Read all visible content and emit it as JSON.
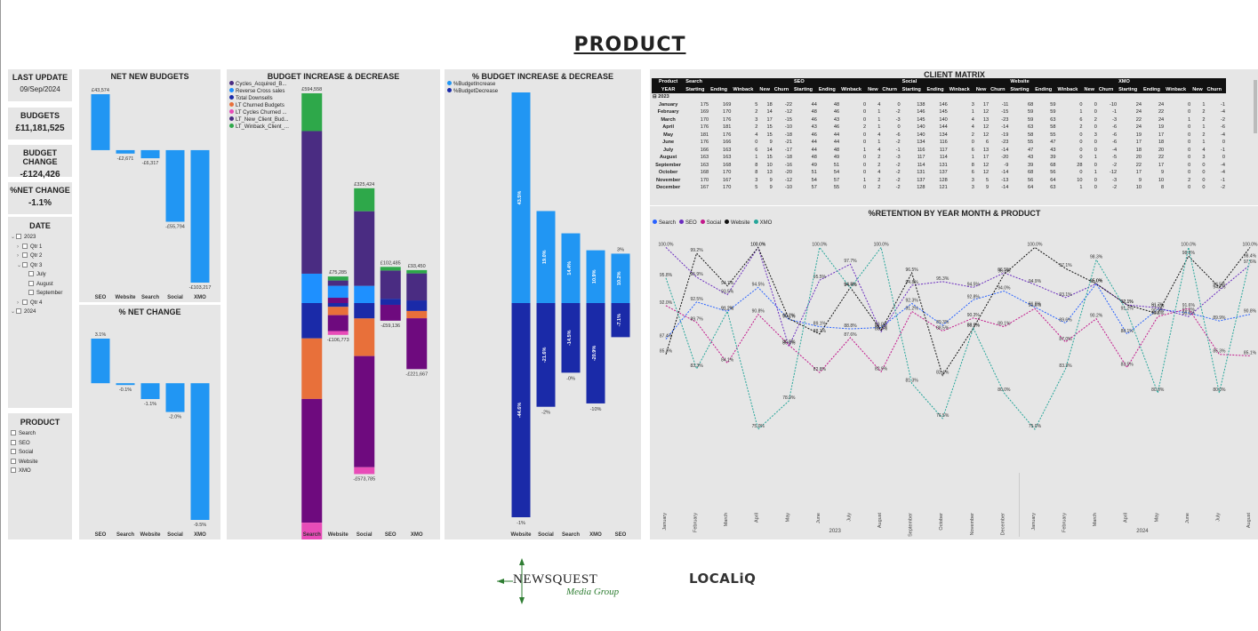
{
  "page": {
    "title": "PRODUCT"
  },
  "kpis": [
    {
      "label": "LAST UPDATE",
      "value": "09/Sep/2024"
    },
    {
      "label": "BUDGETS",
      "value": "£11,181,525"
    },
    {
      "label": "BUDGET CHANGE",
      "value": "-£124,426"
    },
    {
      "label": "%NET CHANGE",
      "value": "-1.1%"
    }
  ],
  "date_slicer": {
    "title": "DATE",
    "items": [
      {
        "label": "2023",
        "level": 0,
        "expander": "⌄"
      },
      {
        "label": "Qtr 1",
        "level": 1,
        "expander": "›"
      },
      {
        "label": "Qtr 2",
        "level": 1,
        "expander": "›"
      },
      {
        "label": "Qtr 3",
        "level": 1,
        "expander": "⌄"
      },
      {
        "label": "July",
        "level": 2,
        "expander": ""
      },
      {
        "label": "August",
        "level": 2,
        "expander": ""
      },
      {
        "label": "September",
        "level": 2,
        "expander": ""
      },
      {
        "label": "Qtr 4",
        "level": 1,
        "expander": "›"
      },
      {
        "label": "2024",
        "level": 0,
        "expander": "⌄"
      }
    ]
  },
  "product_slicer": {
    "title": "PRODUCT",
    "items": [
      "Search",
      "SEO",
      "Social",
      "Website",
      "XMO"
    ]
  },
  "colors": {
    "blue": "#1e90ff",
    "navy": "#1a2aa8",
    "orange": "#e8703a",
    "purple": "#4a2c82",
    "magenta": "#6e0a7e",
    "pink": "#e84cb8",
    "green": "#2ea84a",
    "light_blue": "#2196f3"
  },
  "chart_data": [
    {
      "id": "net_new_budgets",
      "type": "bar",
      "title": "NET NEW BUDGETS",
      "categories": [
        "SEO",
        "Website",
        "Search",
        "Social",
        "XMO"
      ],
      "values": [
        43574,
        -2671,
        -6317,
        -55794,
        -103217
      ],
      "labels": [
        "£43,574",
        "-£2,671",
        "-£6,317",
        "-£55,794",
        "-£103,217"
      ]
    },
    {
      "id": "pct_net_change",
      "type": "bar",
      "title": "% NET CHANGE",
      "categories": [
        "SEO",
        "Search",
        "Website",
        "Social",
        "XMO"
      ],
      "values": [
        3.1,
        -0.1,
        -1.1,
        -2.0,
        -9.5
      ],
      "labels": [
        "3.1%",
        "-0.1%",
        "-1.1%",
        "-2.0%",
        "-9.5%"
      ]
    },
    {
      "id": "budget_inc_dec",
      "type": "bar",
      "title": "BUDGET INCREASE & DECREASE",
      "categories": [
        "Search",
        "Website",
        "Social",
        "SEO",
        "XMO"
      ],
      "legend": [
        "Cycles_Acquired_B...",
        "Reverse Cross sales",
        "Total Downsells",
        "LT Churned Budgets",
        "LT Cycles Churned ...",
        "LT_New_Client_Bud...",
        "LT_Winback_Client_..."
      ],
      "top_labels": [
        "£594,558",
        "£75,285",
        "£325,424",
        "£102,485",
        "£93,450"
      ],
      "bottom_labels": [
        "-£846,863",
        "-£106,773",
        "-£573,785",
        "-£59,136",
        "-£221,667"
      ]
    },
    {
      "id": "pct_budget_inc_dec",
      "type": "bar",
      "title": "% BUDGET INCREASE & DECREASE",
      "categories": [
        "Website",
        "Social",
        "Search",
        "XMO",
        "SEO"
      ],
      "legend": [
        "%BudgetIncrease",
        "%BudgetDecrease"
      ],
      "increase": [
        43.5,
        19.0,
        14.4,
        10.9,
        10.2
      ],
      "increase_labels": [
        "43.5%",
        "19.0%",
        "14.4%",
        "10.9%",
        "10.2%"
      ],
      "decrease": [
        -44.6,
        -21.6,
        -14.5,
        -20.9,
        -7.1
      ],
      "decrease_labels": [
        "-44.6%",
        "-21.6%",
        "-14.5%",
        "-20.9%",
        "-7.1%"
      ],
      "top_small": [
        "",
        "",
        "",
        "",
        "3%"
      ],
      "bottom_small": [
        "-1%",
        "-2%",
        "-0%",
        "-10%",
        ""
      ]
    },
    {
      "id": "retention",
      "type": "line",
      "title": "%RETENTION BY YEAR MONTH & PRODUCT",
      "x": [
        "January",
        "February",
        "March",
        "April",
        "May",
        "June",
        "July",
        "August",
        "September",
        "October",
        "November",
        "December",
        "January",
        "February",
        "March",
        "April",
        "May",
        "June",
        "July",
        "August"
      ],
      "years": [
        {
          "label": "2023",
          "from": 0,
          "to": 11
        },
        {
          "label": "2024",
          "from": 12,
          "to": 19
        }
      ],
      "ylim": [
        70,
        102
      ],
      "series": [
        {
          "name": "Search",
          "color": "#2962ff",
          "values": [
            87.4,
            92.5,
            91.2,
            94.5,
            90.1,
            89.1,
            88.8,
            89.0,
            92.3,
            89.3,
            92.8,
            94.0,
            91.8,
            89.6,
            95.0,
            88.1,
            91.5,
            91.0,
            89.9,
            90.8
          ]
        },
        {
          "name": "SEO",
          "color": "#6a2cbf",
          "values": [
            100.0,
            95.9,
            93.5,
            100.0,
            86.4,
            95.5,
            97.7,
            88.4,
            94.8,
            95.3,
            94.5,
            96.5,
            94.9,
            93.1,
            95.0,
            92.1,
            91.7,
            90.5,
            94.1,
            97.6
          ]
        },
        {
          "name": "Social",
          "color": "#c2188b",
          "values": [
            92.0,
            89.7,
            84.1,
            90.8,
            86.6,
            82.8,
            87.6,
            82.9,
            91.2,
            88.5,
            90.3,
            89.1,
            91.6,
            87.0,
            90.2,
            83.5,
            90.5,
            91.6,
            85.3,
            85.1
          ]
        },
        {
          "name": "Website",
          "color": "#111111",
          "values": [
            85.3,
            99.2,
            94.7,
            100.0,
            90.2,
            88.1,
            94.5,
            88.6,
            96.5,
            82.4,
            88.9,
            96.3,
            100.0,
            97.1,
            95.0,
            92.1,
            90.9,
            98.8,
            94.5,
            100.0
          ]
        },
        {
          "name": "XMO",
          "color": "#26a69a",
          "values": [
            95.8,
            83.3,
            91.2,
            75.0,
            78.9,
            100.0,
            94.4,
            100.0,
            81.3,
            76.5,
            88.9,
            80.0,
            75.0,
            83.3,
            98.3,
            91.2,
            80.0,
            100.0,
            80.0,
            98.4
          ]
        }
      ]
    }
  ],
  "client_matrix": {
    "title": "CLIENT MATRIX",
    "products": [
      "Search",
      "SEO",
      "Social",
      "Website",
      "XMO"
    ],
    "corner": [
      "Product",
      "YEAR"
    ],
    "metrics": [
      "Starting",
      "Ending",
      "Winback",
      "New",
      "Churn"
    ],
    "group": "2023",
    "rows": [
      {
        "m": "January",
        "v": [
          "175",
          "169",
          "5",
          "18",
          "-22",
          "44",
          "48",
          "0",
          "4",
          "0",
          "138",
          "146",
          "3",
          "17",
          "-11",
          "68",
          "59",
          "0",
          "0",
          "-10",
          "24",
          "24",
          "0",
          "1",
          "-1"
        ]
      },
      {
        "m": "February",
        "v": [
          "169",
          "170",
          "2",
          "14",
          "-12",
          "48",
          "46",
          "0",
          "1",
          "-2",
          "146",
          "145",
          "1",
          "12",
          "-15",
          "59",
          "59",
          "1",
          "0",
          "-1",
          "24",
          "22",
          "0",
          "2",
          "-4"
        ]
      },
      {
        "m": "March",
        "v": [
          "170",
          "176",
          "3",
          "17",
          "-15",
          "46",
          "43",
          "0",
          "1",
          "-3",
          "145",
          "140",
          "4",
          "13",
          "-23",
          "59",
          "63",
          "6",
          "2",
          "-3",
          "22",
          "24",
          "1",
          "2",
          "-2"
        ]
      },
      {
        "m": "April",
        "v": [
          "176",
          "181",
          "2",
          "15",
          "-10",
          "43",
          "46",
          "2",
          "1",
          "0",
          "140",
          "144",
          "4",
          "12",
          "-14",
          "63",
          "58",
          "2",
          "0",
          "-6",
          "24",
          "19",
          "0",
          "1",
          "-6"
        ]
      },
      {
        "m": "May",
        "v": [
          "181",
          "176",
          "4",
          "15",
          "-18",
          "46",
          "44",
          "0",
          "4",
          "-6",
          "140",
          "134",
          "2",
          "12",
          "-19",
          "58",
          "55",
          "0",
          "3",
          "-6",
          "19",
          "17",
          "0",
          "2",
          "-4"
        ]
      },
      {
        "m": "June",
        "v": [
          "176",
          "166",
          "0",
          "9",
          "-21",
          "44",
          "44",
          "0",
          "1",
          "-2",
          "134",
          "116",
          "0",
          "6",
          "-23",
          "55",
          "47",
          "0",
          "0",
          "-6",
          "17",
          "18",
          "0",
          "1",
          "0"
        ]
      },
      {
        "m": "July",
        "v": [
          "166",
          "163",
          "6",
          "14",
          "-17",
          "44",
          "48",
          "1",
          "4",
          "-1",
          "116",
          "117",
          "6",
          "13",
          "-14",
          "47",
          "43",
          "0",
          "0",
          "-4",
          "18",
          "20",
          "0",
          "4",
          "-1"
        ]
      },
      {
        "m": "August",
        "v": [
          "163",
          "163",
          "1",
          "15",
          "-18",
          "48",
          "49",
          "0",
          "2",
          "-3",
          "117",
          "114",
          "1",
          "17",
          "-20",
          "43",
          "39",
          "0",
          "1",
          "-5",
          "20",
          "22",
          "0",
          "3",
          "0"
        ]
      },
      {
        "m": "September",
        "v": [
          "163",
          "168",
          "8",
          "10",
          "-16",
          "49",
          "51",
          "0",
          "2",
          "-2",
          "114",
          "131",
          "8",
          "12",
          "-9",
          "39",
          "68",
          "28",
          "0",
          "-2",
          "22",
          "17",
          "0",
          "0",
          "-4"
        ]
      },
      {
        "m": "October",
        "v": [
          "168",
          "170",
          "8",
          "13",
          "-20",
          "51",
          "54",
          "0",
          "4",
          "-2",
          "131",
          "137",
          "6",
          "12",
          "-14",
          "68",
          "56",
          "0",
          "1",
          "-12",
          "17",
          "9",
          "0",
          "0",
          "-4"
        ]
      },
      {
        "m": "November",
        "v": [
          "170",
          "167",
          "3",
          "9",
          "-12",
          "54",
          "57",
          "1",
          "2",
          "-2",
          "137",
          "128",
          "3",
          "5",
          "-13",
          "56",
          "64",
          "10",
          "0",
          "-3",
          "9",
          "10",
          "2",
          "0",
          "-1"
        ]
      },
      {
        "m": "December",
        "v": [
          "167",
          "170",
          "5",
          "9",
          "-10",
          "57",
          "55",
          "0",
          "2",
          "-2",
          "128",
          "121",
          "3",
          "9",
          "-14",
          "64",
          "63",
          "1",
          "0",
          "-2",
          "10",
          "8",
          "0",
          "0",
          "-2"
        ]
      }
    ]
  },
  "logos": {
    "newsquest_main": "NEWSQUEST",
    "newsquest_sub": "Media Group",
    "localiq": "LOCALiQ"
  }
}
